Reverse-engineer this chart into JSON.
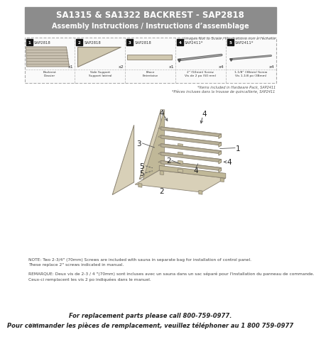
{
  "title_line1": "SA1315 & SA1322 BACKREST - SAP2818",
  "title_line2": "Assembly Instructions / Instructions d’assemblage",
  "title_bg": "#8c8c8c",
  "title_text_color": "#ffffff",
  "not_to_scale": "Images Not to Scale / Illustrations non à l’échelle",
  "parts": [
    {
      "num": "1",
      "code": "SAP2818",
      "qty": "x1",
      "label": "Backrest\nDossier"
    },
    {
      "num": "2",
      "code": "SAP2818",
      "qty": "x2",
      "label": "Side Support\nSupport latéral"
    },
    {
      "num": "3",
      "code": "SAP2818",
      "qty": "x1",
      "label": "Brace\nEntretoise"
    },
    {
      "num": "4",
      "code": "SAP2411*",
      "qty": "x4",
      "label": "2\" (50mm) Screw\nVis de 2 po (50 mm)"
    },
    {
      "num": "5",
      "code": "SAP2411*",
      "qty": "x4",
      "label": "1-1/8\" (38mm) Screw\nVis 1-1/8 po (38mm)"
    }
  ],
  "hardware_note_en": "*Items included in Hardware Pack, SAP2411",
  "hardware_note_fr": "*Pièces incluses dans la trousse de quincaillerie, SAP2411",
  "note_en": "NOTE: Two 2-3/4\" (70mm) Screws are included with sauna in separate bag for installation of control panel.\nThese replace 2\" screws indicated in manual.",
  "note_fr": "REMARQUE: Deux vis de 2-3 / 4 \"(70mm) sont incluses avec un sauna dans un sac séparé pour l'installation du panneau de commande.\nCeux-ci remplacent les vis 2 po indiquées dans le manuel.",
  "footer_en": "For replacement parts please call 800-759-0977.",
  "footer_fr": "Pour commander les pièces de remplacement, veuillez téléphoner au 1 800 759-0977",
  "date": "4/17",
  "bg_color": "#ffffff",
  "slat_face": "#d8c8a8",
  "slat_edge_color": "#888070",
  "slat_side_color": "#b8a888",
  "support_color": "#c0b090",
  "support_edge": "#888070"
}
